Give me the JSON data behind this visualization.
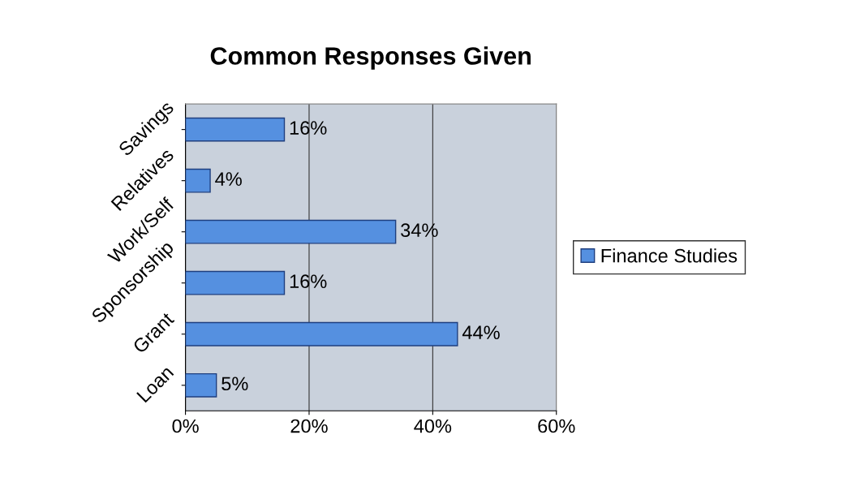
{
  "chart_data": {
    "type": "bar",
    "orientation": "horizontal",
    "title": "Common Responses Given",
    "categories": [
      "Savings",
      "Relatives",
      "Work/Self",
      "Sponsorship",
      "Grant",
      "Loan"
    ],
    "series": [
      {
        "name": "Finance Studies",
        "color": "#5590e0",
        "values": [
          16,
          4,
          34,
          16,
          44,
          5
        ],
        "value_labels": [
          "16%",
          "4%",
          "34%",
          "16%",
          "44%",
          "5%"
        ]
      }
    ],
    "xlim": [
      0,
      60
    ],
    "xticks": [
      {
        "value": 0,
        "label": "0%"
      },
      {
        "value": 20,
        "label": "20%"
      },
      {
        "value": 40,
        "label": "40%"
      },
      {
        "value": 60,
        "label": "60%"
      }
    ],
    "grid": "x",
    "legend": "right"
  }
}
